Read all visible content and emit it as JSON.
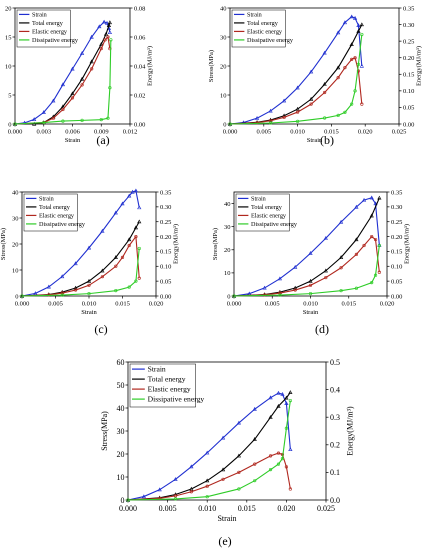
{
  "figure": {
    "legend_labels": [
      "Strain",
      "Total energy",
      "Elastic energy",
      "Dissipative energy"
    ],
    "colors": {
      "Strain": "#1f2fd0",
      "Total energy": "#000000",
      "Elastic energy": "#b0271e",
      "Dissipative energy": "#2ecc27"
    }
  },
  "chart_data": [
    {
      "panel_label": "(a)",
      "type": "line",
      "xlabel": "Strain",
      "ylabel": "Stress(MPa)",
      "y2label": "Energy(MJ/m³)",
      "xlim": [
        0,
        0.012
      ],
      "ylim": [
        0,
        20
      ],
      "y2lim": [
        0,
        0.08
      ],
      "xticks": [
        "0.000",
        "0.003",
        "0.006",
        "0.009",
        "0.012"
      ],
      "yticks": [
        "0",
        "5",
        "10",
        "15",
        "20"
      ],
      "y2ticks": [
        "0.00",
        "0.02",
        "0.04",
        "0.06",
        "0.08"
      ],
      "grid": false,
      "legend_position": "top-left",
      "series": [
        {
          "name": "Strain",
          "axis": "left",
          "x": [
            0,
            0.001,
            0.002,
            0.003,
            0.004,
            0.005,
            0.006,
            0.007,
            0.008,
            0.0088,
            0.0093,
            0.0096,
            0.0098,
            0.0099
          ],
          "y": [
            0,
            0.2,
            0.8,
            2.0,
            4.0,
            6.8,
            9.5,
            12.2,
            15.0,
            16.8,
            17.6,
            17.4,
            16.5,
            15.8
          ]
        },
        {
          "name": "Total energy",
          "axis": "right",
          "x": [
            0,
            0.002,
            0.003,
            0.004,
            0.005,
            0.006,
            0.007,
            0.008,
            0.009,
            0.0095,
            0.0098,
            0.0099
          ],
          "y": [
            0,
            0.0,
            0.001,
            0.005,
            0.012,
            0.021,
            0.031,
            0.043,
            0.055,
            0.062,
            0.068,
            0.07
          ]
        },
        {
          "name": "Elastic energy",
          "axis": "right",
          "x": [
            0,
            0.003,
            0.004,
            0.005,
            0.006,
            0.007,
            0.008,
            0.009,
            0.0094,
            0.0097,
            0.0099
          ],
          "y": [
            0,
            0.001,
            0.004,
            0.01,
            0.018,
            0.027,
            0.038,
            0.052,
            0.058,
            0.06,
            0.052
          ]
        },
        {
          "name": "Dissipative energy",
          "axis": "right",
          "x": [
            0,
            0.003,
            0.005,
            0.007,
            0.009,
            0.0097,
            0.0099,
            0.01
          ],
          "y": [
            0,
            0.001,
            0.002,
            0.0025,
            0.003,
            0.004,
            0.025,
            0.058
          ]
        }
      ]
    },
    {
      "panel_label": "(b)",
      "type": "line",
      "xlabel": "Strain",
      "ylabel": "Stress(MPa)",
      "y2label": "Energy(MJ/m³)",
      "xlim": [
        0,
        0.025
      ],
      "ylim": [
        0,
        40
      ],
      "y2lim": [
        0,
        0.35
      ],
      "xticks": [
        "0.000",
        "0.005",
        "0.010",
        "0.015",
        "0.020",
        "0.025"
      ],
      "yticks": [
        "0",
        "10",
        "20",
        "30",
        "40"
      ],
      "y2ticks": [
        "0.00",
        "0.05",
        "0.10",
        "0.15",
        "0.20",
        "0.25",
        "0.30",
        "0.35"
      ],
      "grid": false,
      "legend_position": "top-left",
      "series": [
        {
          "name": "Strain",
          "axis": "left",
          "x": [
            0,
            0.002,
            0.004,
            0.006,
            0.008,
            0.01,
            0.012,
            0.014,
            0.016,
            0.017,
            0.018,
            0.0185,
            0.019,
            0.0195
          ],
          "y": [
            0,
            0.5,
            2.0,
            4.5,
            8.0,
            12.5,
            18.0,
            24.5,
            31.5,
            35.0,
            37.0,
            36.5,
            34.0,
            20.0
          ]
        },
        {
          "name": "Total energy",
          "axis": "right",
          "x": [
            0,
            0.004,
            0.006,
            0.008,
            0.01,
            0.012,
            0.014,
            0.016,
            0.018,
            0.019,
            0.0195
          ],
          "y": [
            0,
            0.005,
            0.012,
            0.025,
            0.045,
            0.075,
            0.12,
            0.17,
            0.24,
            0.28,
            0.3
          ]
        },
        {
          "name": "Elastic energy",
          "axis": "right",
          "x": [
            0,
            0.004,
            0.006,
            0.008,
            0.01,
            0.012,
            0.014,
            0.016,
            0.017,
            0.018,
            0.0185,
            0.019,
            0.0195
          ],
          "y": [
            0,
            0.004,
            0.01,
            0.02,
            0.036,
            0.06,
            0.095,
            0.14,
            0.17,
            0.195,
            0.2,
            0.16,
            0.06
          ]
        },
        {
          "name": "Dissipative energy",
          "axis": "right",
          "x": [
            0,
            0.006,
            0.01,
            0.014,
            0.016,
            0.017,
            0.018,
            0.0185,
            0.019,
            0.0195
          ],
          "y": [
            0,
            0.003,
            0.008,
            0.018,
            0.026,
            0.035,
            0.06,
            0.1,
            0.18,
            0.27
          ]
        }
      ]
    },
    {
      "panel_label": "(c)",
      "type": "line",
      "xlabel": "Strain",
      "ylabel": "Stress(MPa)",
      "y2label": "Energy(MJ/m³)",
      "xlim": [
        0,
        0.02
      ],
      "ylim": [
        0,
        40
      ],
      "y2lim": [
        0,
        0.35
      ],
      "xticks": [
        "0.000",
        "0.005",
        "0.010",
        "0.015",
        "0.020"
      ],
      "yticks": [
        "0",
        "10",
        "20",
        "30",
        "40"
      ],
      "y2ticks": [
        "0.00",
        "0.05",
        "0.10",
        "0.15",
        "0.20",
        "0.25",
        "0.30",
        "0.35"
      ],
      "grid": false,
      "legend_position": "top-left",
      "series": [
        {
          "name": "Strain",
          "axis": "left",
          "x": [
            0,
            0.002,
            0.004,
            0.006,
            0.008,
            0.01,
            0.012,
            0.014,
            0.015,
            0.016,
            0.0165,
            0.017,
            0.0175
          ],
          "y": [
            0,
            1.0,
            3.5,
            7.5,
            12.5,
            18.5,
            25.0,
            32.0,
            35.5,
            38.5,
            40.0,
            40.5,
            34.0
          ]
        },
        {
          "name": "Total energy",
          "axis": "right",
          "x": [
            0,
            0.004,
            0.006,
            0.008,
            0.01,
            0.012,
            0.014,
            0.016,
            0.017,
            0.0175
          ],
          "y": [
            0,
            0.005,
            0.013,
            0.027,
            0.05,
            0.085,
            0.13,
            0.19,
            0.23,
            0.25
          ]
        },
        {
          "name": "Elastic energy",
          "axis": "right",
          "x": [
            0,
            0.004,
            0.006,
            0.008,
            0.01,
            0.012,
            0.014,
            0.015,
            0.016,
            0.017,
            0.0175
          ],
          "y": [
            0,
            0.004,
            0.01,
            0.02,
            0.036,
            0.065,
            0.1,
            0.13,
            0.17,
            0.2,
            0.06
          ]
        },
        {
          "name": "Dissipative energy",
          "axis": "right",
          "x": [
            0,
            0.006,
            0.01,
            0.014,
            0.016,
            0.017,
            0.0175
          ],
          "y": [
            0,
            0.003,
            0.008,
            0.018,
            0.03,
            0.05,
            0.16
          ]
        }
      ]
    },
    {
      "panel_label": "(d)",
      "type": "line",
      "xlabel": "Strain",
      "ylabel": "Stress(MPa)",
      "y2label": "Energy(MJ/m³)",
      "xlim": [
        0,
        0.02
      ],
      "ylim": [
        0,
        45
      ],
      "y2lim": [
        0,
        0.35
      ],
      "xticks": [
        "0.000",
        "0.005",
        "0.010",
        "0.015",
        "0.020"
      ],
      "yticks": [
        "0",
        "10",
        "20",
        "30",
        "40"
      ],
      "y2ticks": [
        "0.00",
        "0.05",
        "0.10",
        "0.15",
        "0.20",
        "0.25",
        "0.30",
        "0.35"
      ],
      "grid": false,
      "legend_position": "top-left",
      "series": [
        {
          "name": "Strain",
          "axis": "left",
          "x": [
            0,
            0.002,
            0.004,
            0.006,
            0.008,
            0.01,
            0.012,
            0.014,
            0.016,
            0.017,
            0.018,
            0.0185,
            0.019
          ],
          "y": [
            0,
            1.0,
            3.5,
            7.5,
            12.5,
            18.5,
            25.0,
            32.0,
            38.5,
            41.5,
            42.5,
            40.0,
            22.0
          ]
        },
        {
          "name": "Total energy",
          "axis": "right",
          "x": [
            0,
            0.004,
            0.006,
            0.008,
            0.01,
            0.012,
            0.014,
            0.016,
            0.018,
            0.019
          ],
          "y": [
            0,
            0.005,
            0.013,
            0.027,
            0.05,
            0.085,
            0.13,
            0.19,
            0.27,
            0.33
          ]
        },
        {
          "name": "Elastic energy",
          "axis": "right",
          "x": [
            0,
            0.004,
            0.006,
            0.008,
            0.01,
            0.012,
            0.014,
            0.016,
            0.017,
            0.018,
            0.0185,
            0.019
          ],
          "y": [
            0,
            0.004,
            0.01,
            0.02,
            0.036,
            0.062,
            0.095,
            0.14,
            0.17,
            0.2,
            0.19,
            0.08
          ]
        },
        {
          "name": "Dissipative energy",
          "axis": "right",
          "x": [
            0,
            0.006,
            0.01,
            0.014,
            0.016,
            0.018,
            0.0185,
            0.019
          ],
          "y": [
            0,
            0.003,
            0.008,
            0.018,
            0.026,
            0.045,
            0.07,
            0.17
          ]
        }
      ]
    },
    {
      "panel_label": "(e)",
      "type": "line",
      "xlabel": "Strain",
      "ylabel": "Stress(MPa)",
      "y2label": "Energy(MJ/m³)",
      "xlim": [
        0,
        0.025
      ],
      "ylim": [
        0,
        60
      ],
      "y2lim": [
        0,
        0.5
      ],
      "xticks": [
        "0.000",
        "0.005",
        "0.010",
        "0.015",
        "0.020",
        "0.025"
      ],
      "yticks": [
        "0",
        "10",
        "20",
        "30",
        "40",
        "50",
        "60"
      ],
      "y2ticks": [
        "0.0",
        "0.1",
        "0.2",
        "0.3",
        "0.4",
        "0.5"
      ],
      "grid": false,
      "legend_position": "top-left",
      "series": [
        {
          "name": "Strain",
          "axis": "left",
          "x": [
            0,
            0.002,
            0.004,
            0.006,
            0.008,
            0.01,
            0.012,
            0.014,
            0.016,
            0.018,
            0.019,
            0.0195,
            0.02,
            0.0205
          ],
          "y": [
            0,
            1.5,
            4.5,
            9.0,
            14.5,
            20.5,
            27.0,
            33.5,
            39.5,
            44.5,
            46.5,
            46.0,
            42.0,
            22.0
          ]
        },
        {
          "name": "Total energy",
          "axis": "right",
          "x": [
            0,
            0.004,
            0.006,
            0.008,
            0.01,
            0.012,
            0.014,
            0.016,
            0.018,
            0.019,
            0.02,
            0.0205
          ],
          "y": [
            0,
            0.008,
            0.02,
            0.04,
            0.07,
            0.11,
            0.16,
            0.22,
            0.3,
            0.34,
            0.37,
            0.39
          ]
        },
        {
          "name": "Elastic energy",
          "axis": "right",
          "x": [
            0,
            0.004,
            0.006,
            0.008,
            0.01,
            0.012,
            0.014,
            0.016,
            0.018,
            0.019,
            0.0195,
            0.02,
            0.0205
          ],
          "y": [
            0,
            0.006,
            0.015,
            0.03,
            0.05,
            0.075,
            0.1,
            0.13,
            0.16,
            0.17,
            0.165,
            0.12,
            0.04
          ]
        },
        {
          "name": "Dissipative energy",
          "axis": "right",
          "x": [
            0,
            0.006,
            0.01,
            0.014,
            0.016,
            0.018,
            0.019,
            0.0195,
            0.02,
            0.0205
          ],
          "y": [
            0,
            0.004,
            0.012,
            0.04,
            0.07,
            0.11,
            0.13,
            0.15,
            0.26,
            0.36
          ]
        }
      ]
    }
  ]
}
